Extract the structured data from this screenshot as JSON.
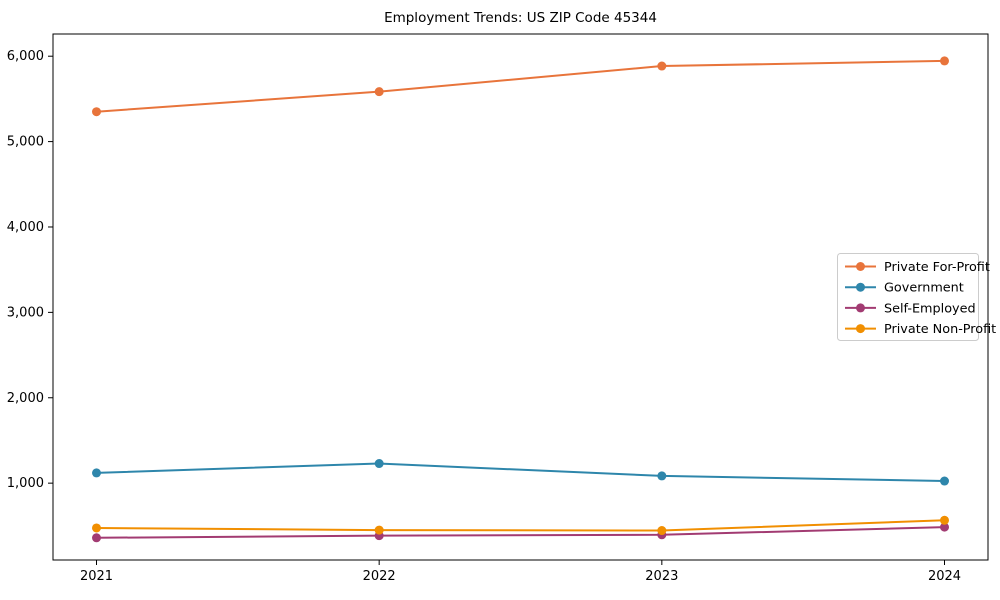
{
  "page": {
    "background": "#ffffff"
  },
  "chart_data": {
    "type": "line",
    "title": "Employment Trends: US ZIP Code 45344",
    "categories": [
      "2021",
      "2022",
      "2023",
      "2024"
    ],
    "series": [
      {
        "name": "Private For-Profit",
        "color": "#E8743B",
        "values": [
          5350,
          5585,
          5885,
          5945
        ]
      },
      {
        "name": "Government",
        "color": "#2E86AB",
        "values": [
          1120,
          1230,
          1085,
          1025
        ]
      },
      {
        "name": "Self-Employed",
        "color": "#A23B72",
        "values": [
          360,
          385,
          395,
          485
        ]
      },
      {
        "name": "Private Non-Profit",
        "color": "#F18F01",
        "values": [
          475,
          450,
          445,
          565
        ]
      }
    ],
    "xlabel": "",
    "ylabel": "",
    "yticks": [
      1000,
      2000,
      3000,
      4000,
      5000,
      6000
    ],
    "ytick_labels": [
      "1,000",
      "2,000",
      "3,000",
      "4,000",
      "5,000",
      "6,000"
    ],
    "ylim": [
      100,
      6260
    ],
    "grid": false,
    "legend": {
      "position": "center-right",
      "border_color": "#cccccc",
      "background": "#ffffff"
    },
    "axis_color": "#000000",
    "text_color": "#000000"
  }
}
